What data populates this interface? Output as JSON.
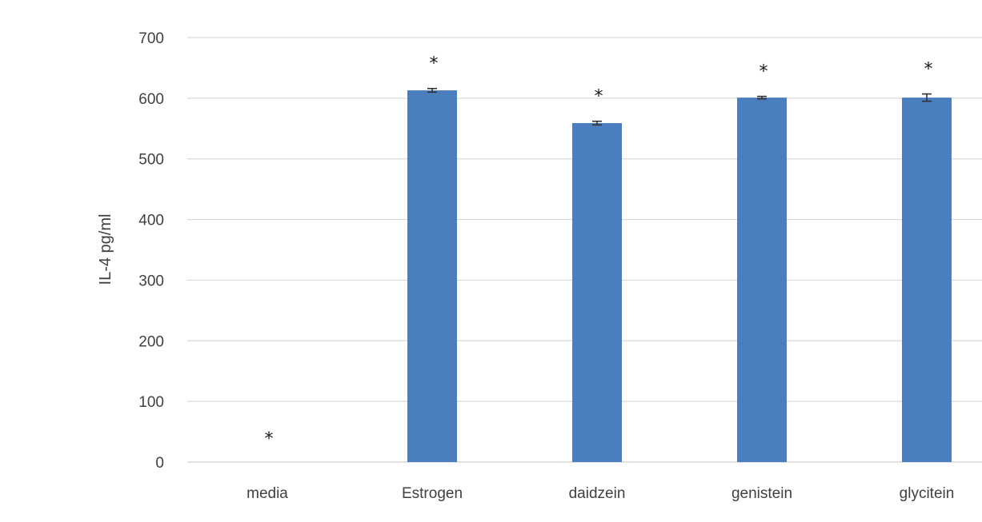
{
  "chart_data": {
    "type": "bar",
    "categories": [
      "media",
      "Estrogen",
      "daidzein",
      "genistein",
      "glycitein"
    ],
    "values": [
      0,
      613,
      559,
      601,
      601
    ],
    "errors": [
      0,
      3,
      3,
      2,
      6
    ],
    "annotations": [
      "*",
      "*",
      "*",
      "*",
      "*"
    ],
    "xlabel": "",
    "ylabel": "IL-4 pg/ml",
    "ylim": [
      0,
      700
    ],
    "yticks": [
      0,
      100,
      200,
      300,
      400,
      500,
      600,
      700
    ],
    "grid": true,
    "legend": "none",
    "bar_color": "#4a7ebf",
    "grid_color": "#d9d9d9"
  }
}
